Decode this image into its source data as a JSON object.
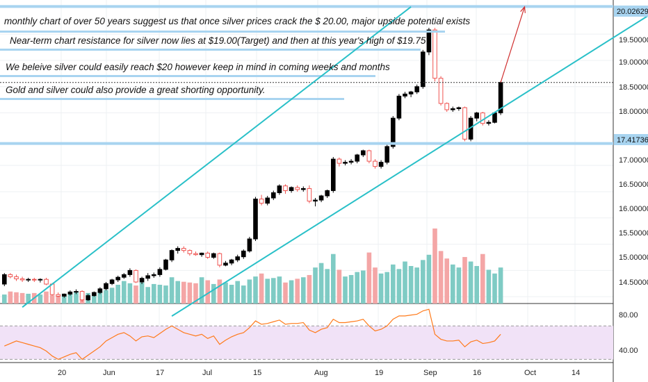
{
  "annotations": [
    "monthly chart of over 50 years suggest us that once silver prices crack the $ 20.00, major upside potential exists",
    "Near-term chart resistance for silver now lies at $19.00(Target) and then at this year's high of $19.75",
    "We beleive silver could easily reach $20 however keep in mind in coming weeks and months",
    "Gold and silver could also provide a great shorting opportunity."
  ],
  "price_tags": {
    "upper": "20.02629",
    "lower": "17.41736"
  },
  "price_ticks": [
    "19.50000",
    "19.00000",
    "18.50000",
    "18.00000",
    "17.00000",
    "16.50000",
    "16.00000",
    "15.50000",
    "15.00000",
    "14.50000"
  ],
  "rsi_ticks": [
    "80.00",
    "40.00"
  ],
  "time_ticks": [
    "20",
    "Jun",
    "17",
    "Jul",
    "15",
    "Aug",
    "19",
    "Sep",
    "16",
    "Oct",
    "14"
  ],
  "colors": {
    "up": "#000000",
    "down": "#ef5350",
    "vol_up": "#7fcbc4",
    "vol_down": "#f4a6a6",
    "channel": "#29c0c8",
    "resistance": "#a8d4f0",
    "rsi": "#ff7a1a",
    "rsi_band": "#f1e2f7",
    "target_arrow": "#d03030"
  },
  "chart_data": {
    "type": "candlestick",
    "ohlc": [
      [
        14.74,
        14.95,
        14.7,
        14.92
      ],
      [
        14.92,
        14.95,
        14.85,
        14.88
      ],
      [
        14.88,
        14.92,
        14.8,
        14.84
      ],
      [
        14.84,
        14.88,
        14.78,
        14.82
      ],
      [
        14.82,
        14.86,
        14.78,
        14.83
      ],
      [
        14.83,
        14.86,
        14.78,
        14.82
      ],
      [
        14.82,
        14.85,
        14.77,
        14.83
      ],
      [
        14.83,
        14.86,
        14.72,
        14.74
      ],
      [
        14.74,
        14.76,
        14.52,
        14.54
      ],
      [
        14.54,
        14.58,
        14.49,
        14.51
      ],
      [
        14.51,
        14.56,
        14.48,
        14.55
      ],
      [
        14.55,
        14.62,
        14.52,
        14.59
      ],
      [
        14.59,
        14.64,
        14.55,
        14.6
      ],
      [
        14.6,
        14.62,
        14.4,
        14.44
      ],
      [
        14.44,
        14.55,
        14.42,
        14.52
      ],
      [
        14.52,
        14.6,
        14.5,
        14.58
      ],
      [
        14.58,
        14.68,
        14.55,
        14.65
      ],
      [
        14.65,
        14.78,
        14.62,
        14.75
      ],
      [
        14.75,
        14.84,
        14.72,
        14.82
      ],
      [
        14.82,
        14.9,
        14.78,
        14.87
      ],
      [
        14.87,
        14.95,
        14.84,
        14.92
      ],
      [
        14.92,
        15.04,
        14.88,
        15.0
      ],
      [
        15.0,
        15.02,
        14.76,
        14.78
      ],
      [
        14.78,
        14.88,
        14.74,
        14.85
      ],
      [
        14.85,
        14.95,
        14.8,
        14.9
      ],
      [
        14.9,
        14.96,
        14.86,
        14.92
      ],
      [
        14.92,
        15.06,
        14.88,
        15.02
      ],
      [
        15.02,
        15.22,
        15.0,
        15.2
      ],
      [
        15.2,
        15.4,
        15.16,
        15.38
      ],
      [
        15.38,
        15.46,
        15.32,
        15.42
      ],
      [
        15.42,
        15.46,
        15.34,
        15.38
      ],
      [
        15.38,
        15.4,
        15.28,
        15.32
      ],
      [
        15.32,
        15.36,
        15.28,
        15.3
      ],
      [
        15.3,
        15.34,
        15.26,
        15.33
      ],
      [
        15.33,
        15.36,
        15.22,
        15.25
      ],
      [
        15.25,
        15.34,
        15.22,
        15.32
      ],
      [
        15.32,
        15.34,
        15.06,
        15.1
      ],
      [
        15.1,
        15.18,
        15.08,
        15.14
      ],
      [
        15.14,
        15.22,
        15.1,
        15.2
      ],
      [
        15.2,
        15.3,
        15.16,
        15.26
      ],
      [
        15.26,
        15.4,
        15.22,
        15.37
      ],
      [
        15.37,
        15.64,
        15.34,
        15.6
      ],
      [
        15.6,
        16.4,
        15.56,
        16.36
      ],
      [
        16.36,
        16.44,
        16.24,
        16.28
      ],
      [
        16.28,
        16.42,
        16.24,
        16.38
      ],
      [
        16.38,
        16.52,
        16.34,
        16.48
      ],
      [
        16.48,
        16.64,
        16.44,
        16.61
      ],
      [
        16.61,
        16.64,
        16.46,
        16.52
      ],
      [
        16.52,
        16.6,
        16.48,
        16.58
      ],
      [
        16.58,
        16.62,
        16.5,
        16.54
      ],
      [
        16.54,
        16.6,
        16.5,
        16.56
      ],
      [
        16.56,
        16.62,
        16.28,
        16.32
      ],
      [
        16.32,
        16.38,
        16.22,
        16.34
      ],
      [
        16.34,
        16.44,
        16.3,
        16.42
      ],
      [
        16.42,
        16.54,
        16.38,
        16.52
      ],
      [
        16.52,
        17.16,
        16.48,
        17.12
      ],
      [
        17.12,
        17.15,
        16.98,
        17.04
      ],
      [
        17.04,
        17.1,
        17.0,
        17.06
      ],
      [
        17.06,
        17.12,
        17.02,
        17.08
      ],
      [
        17.08,
        17.22,
        17.04,
        17.2
      ],
      [
        17.2,
        17.3,
        17.16,
        17.28
      ],
      [
        17.28,
        17.3,
        17.04,
        17.08
      ],
      [
        17.08,
        17.12,
        16.94,
        16.98
      ],
      [
        16.98,
        17.1,
        16.94,
        17.06
      ],
      [
        17.06,
        17.4,
        17.02,
        17.36
      ],
      [
        17.36,
        17.94,
        17.32,
        17.9
      ],
      [
        17.9,
        18.36,
        17.86,
        18.32
      ],
      [
        18.32,
        18.4,
        18.28,
        18.36
      ],
      [
        18.36,
        18.42,
        18.3,
        18.4
      ],
      [
        18.4,
        18.54,
        18.36,
        18.5
      ],
      [
        18.5,
        19.2,
        18.46,
        19.16
      ],
      [
        19.16,
        19.62,
        19.1,
        19.58
      ],
      [
        19.58,
        19.62,
        18.6,
        18.66
      ],
      [
        18.66,
        18.7,
        18.14,
        18.18
      ],
      [
        18.18,
        18.2,
        18.02,
        18.06
      ],
      [
        18.06,
        18.12,
        18.02,
        18.08
      ],
      [
        18.08,
        18.12,
        18.04,
        18.1
      ],
      [
        18.1,
        18.12,
        17.46,
        17.5
      ],
      [
        17.5,
        17.94,
        17.46,
        17.9
      ],
      [
        17.9,
        18.02,
        17.84,
        18.0
      ],
      [
        18.0,
        18.02,
        17.76,
        17.8
      ],
      [
        17.8,
        17.86,
        17.76,
        17.82
      ],
      [
        17.82,
        18.02,
        17.8,
        18.0
      ],
      [
        18.0,
        18.6,
        17.96,
        18.58
      ]
    ],
    "volume": [
      0.12,
      0.16,
      0.15,
      0.14,
      0.13,
      0.14,
      0.12,
      0.16,
      0.11,
      0.1,
      0.12,
      0.13,
      0.15,
      0.1,
      0.14,
      0.15,
      0.17,
      0.18,
      0.21,
      0.25,
      0.3,
      0.27,
      0.24,
      0.28,
      0.22,
      0.26,
      0.25,
      0.24,
      0.35,
      0.3,
      0.29,
      0.28,
      0.27,
      0.35,
      0.31,
      0.26,
      0.32,
      0.28,
      0.25,
      0.3,
      0.24,
      0.32,
      0.36,
      0.4,
      0.33,
      0.34,
      0.36,
      0.28,
      0.31,
      0.33,
      0.35,
      0.38,
      0.48,
      0.54,
      0.46,
      0.66,
      0.45,
      0.36,
      0.38,
      0.42,
      0.44,
      0.68,
      0.48,
      0.4,
      0.42,
      0.52,
      0.46,
      0.56,
      0.5,
      0.48,
      0.58,
      0.65,
      1.0,
      0.7,
      0.6,
      0.52,
      0.48,
      0.62,
      0.56,
      0.5,
      0.66,
      0.45,
      0.4,
      0.48
    ],
    "rsi": [
      46,
      49,
      52,
      50,
      48,
      46,
      44,
      40,
      34,
      30,
      33,
      36,
      38,
      30,
      35,
      40,
      45,
      52,
      56,
      60,
      62,
      58,
      52,
      57,
      58,
      56,
      61,
      66,
      70,
      66,
      62,
      60,
      58,
      60,
      55,
      58,
      48,
      53,
      57,
      60,
      62,
      68,
      76,
      72,
      73,
      75,
      77,
      72,
      73,
      73,
      74,
      65,
      62,
      66,
      68,
      78,
      74,
      74,
      75,
      76,
      78,
      70,
      64,
      66,
      70,
      78,
      82,
      82,
      83,
      84,
      88,
      90,
      60,
      54,
      52,
      52,
      53,
      45,
      51,
      53,
      49,
      50,
      52,
      60
    ],
    "channel_lower": {
      "start": [
        28,
        14.13
      ],
      "end": [
        110,
        20.02
      ]
    },
    "channel_upper": {
      "start": [
        3,
        14.3
      ],
      "end": [
        68,
        20.02
      ]
    },
    "resistance_levels": [
      20.02629,
      17.41736
    ],
    "target_arrow": {
      "from": [
        83,
        18.58
      ],
      "to": [
        87,
        20.02
      ]
    },
    "price_range": [
      14.37,
      20.15
    ],
    "rsi_range": [
      27,
      96
    ],
    "rsi_bands": [
      70,
      30
    ]
  }
}
